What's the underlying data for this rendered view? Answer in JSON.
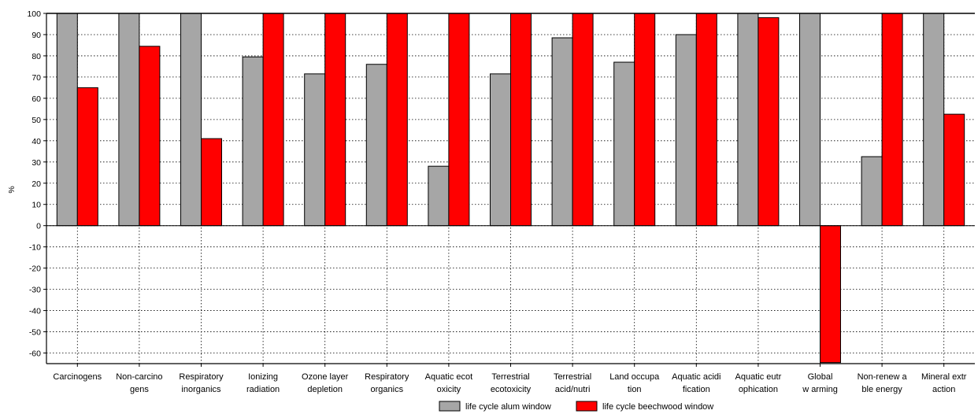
{
  "chart_data": {
    "type": "bar",
    "ylabel": "%",
    "ylim": [
      -65,
      100
    ],
    "yticks": [
      100,
      90,
      80,
      70,
      60,
      50,
      40,
      30,
      20,
      10,
      0,
      -10,
      -20,
      -30,
      -40,
      -50,
      -60
    ],
    "grid": true,
    "legend_position": "bottom-center",
    "categories": [
      [
        "Carcinogens"
      ],
      [
        "Non-carcino",
        "gens"
      ],
      [
        "Respiratory",
        "inorganics"
      ],
      [
        "Ionizing",
        "radiation"
      ],
      [
        "Ozone layer",
        "depletion"
      ],
      [
        "Respiratory",
        "organics"
      ],
      [
        "Aquatic ecot",
        "oxicity"
      ],
      [
        "Terrestrial",
        "ecotoxicity"
      ],
      [
        "Terrestrial",
        "acid/nutri"
      ],
      [
        "Land occupa",
        "tion"
      ],
      [
        "Aquatic acidi",
        "fication"
      ],
      [
        "Aquatic eutr",
        "ophication"
      ],
      [
        "Global",
        "w arming"
      ],
      [
        "Non-renew a",
        "ble energy"
      ],
      [
        "Mineral extr",
        "action"
      ]
    ],
    "series": [
      {
        "name": "life cycle alum window",
        "color": "#a6a6a6",
        "values": [
          100,
          100,
          100,
          79.5,
          71.5,
          76,
          28,
          71.5,
          88.5,
          77,
          90,
          100,
          100,
          32.5,
          100
        ]
      },
      {
        "name": "life cycle beechwood window",
        "color": "#ff0000",
        "values": [
          65,
          84.5,
          41,
          100,
          100,
          100,
          100,
          100,
          100,
          100,
          100,
          98,
          -64.5,
          100,
          52.5
        ]
      }
    ]
  }
}
